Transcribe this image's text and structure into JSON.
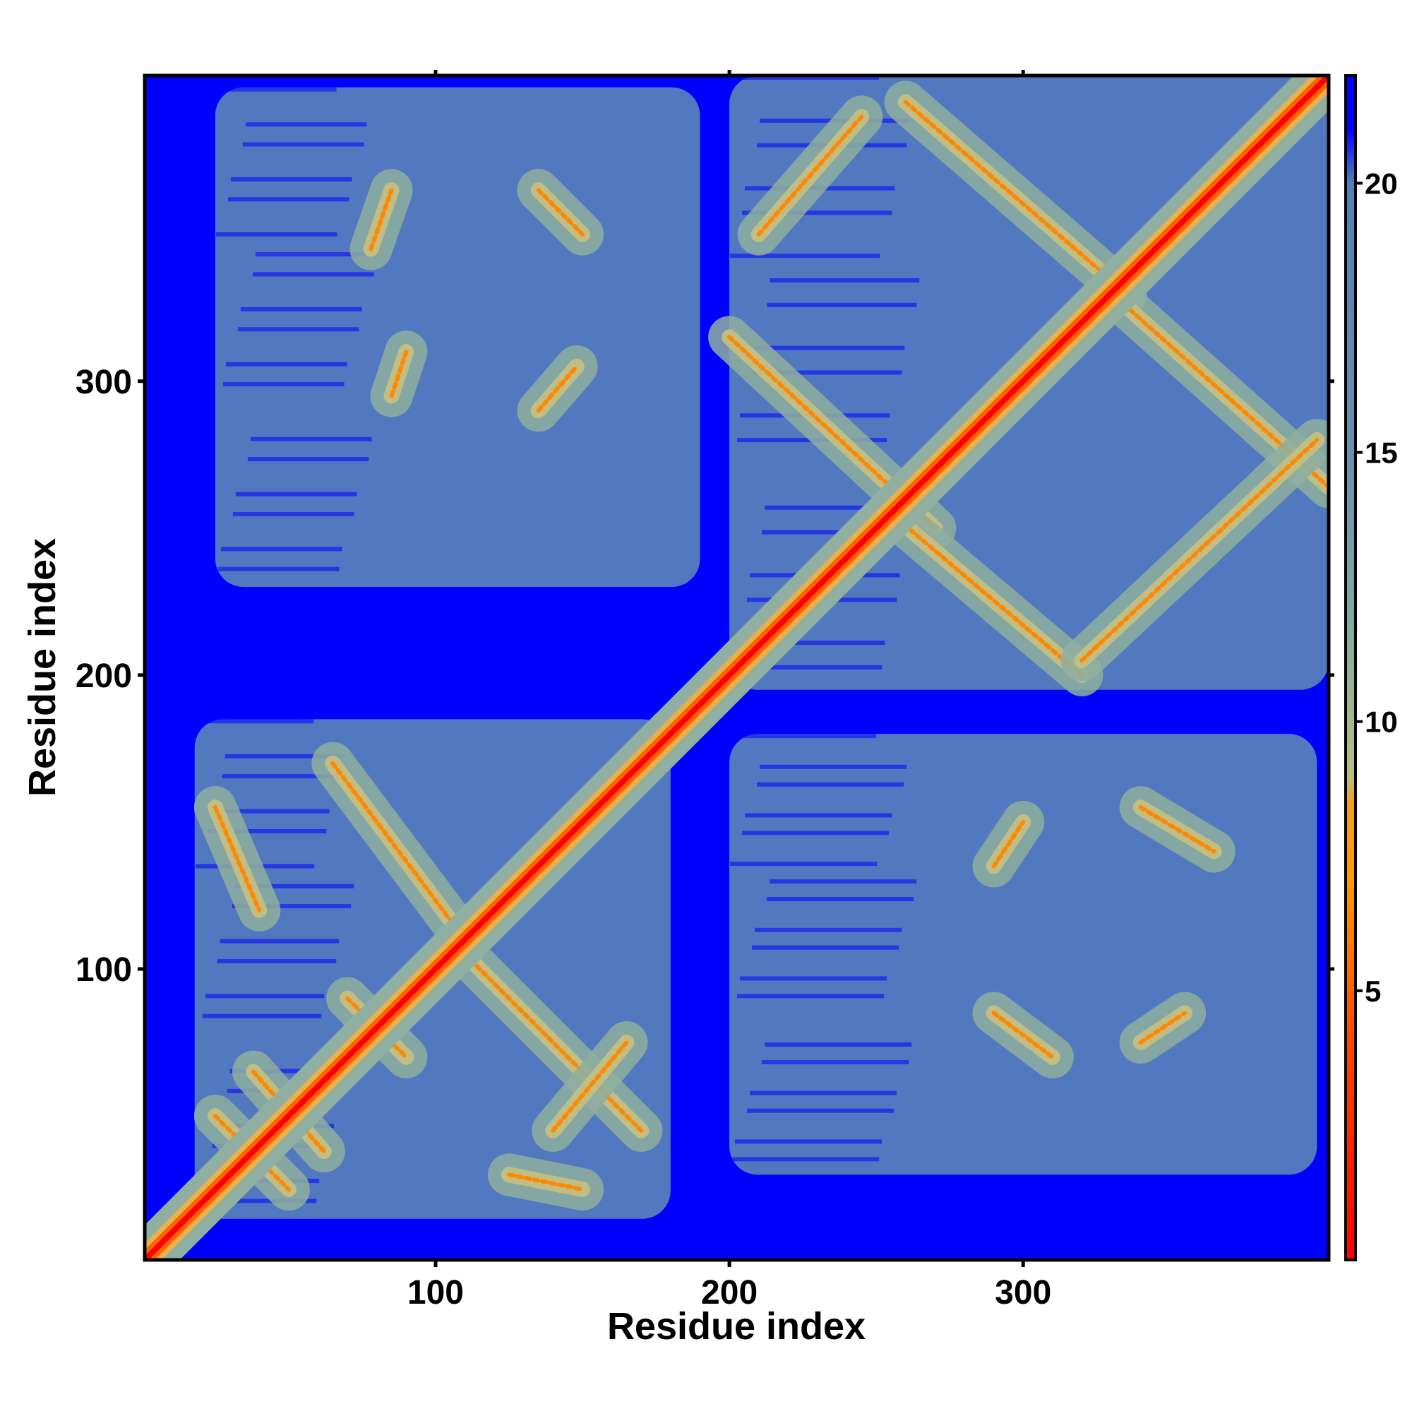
{
  "chart_data": {
    "type": "heatmap",
    "xlabel": "Residue index",
    "ylabel": "Residue index",
    "xlim": [
      1,
      404
    ],
    "ylim": [
      1,
      404
    ],
    "x_ticks": [
      100,
      200,
      300
    ],
    "y_ticks": [
      100,
      200,
      300
    ],
    "grid": false,
    "colorbar": {
      "ticks": [
        5,
        10,
        15,
        20
      ],
      "range": [
        0,
        22
      ],
      "colors": [
        {
          "stop": 0,
          "color": "#ff0000"
        },
        {
          "stop": 4,
          "color": "#ff4500"
        },
        {
          "stop": 7,
          "color": "#ff9900"
        },
        {
          "stop": 8.5,
          "color": "#f0a020"
        },
        {
          "stop": 9,
          "color": "#b8c080"
        },
        {
          "stop": 12,
          "color": "#80a8a0"
        },
        {
          "stop": 15,
          "color": "#6a90b0"
        },
        {
          "stop": 20,
          "color": "#5080b8"
        },
        {
          "stop": 21,
          "color": "#0000ff"
        }
      ]
    },
    "background_value_color": "#0000ff",
    "diagonal_contacts": [
      {
        "from": 1,
        "to": 404,
        "value": 2
      }
    ],
    "contact_bands": [
      {
        "x0": 25,
        "y0": 50,
        "x1": 50,
        "y1": 25
      },
      {
        "x0": 38,
        "y0": 65,
        "x1": 62,
        "y1": 38
      },
      {
        "x0": 70,
        "y0": 90,
        "x1": 90,
        "y1": 70
      },
      {
        "x0": 110,
        "y0": 105,
        "x1": 170,
        "y1": 45
      },
      {
        "x0": 25,
        "y0": 155,
        "x1": 40,
        "y1": 120
      },
      {
        "x0": 65,
        "y0": 170,
        "x1": 110,
        "y1": 110
      },
      {
        "x0": 125,
        "y0": 30,
        "x1": 150,
        "y1": 25
      },
      {
        "x0": 140,
        "y0": 45,
        "x1": 165,
        "y1": 75
      },
      {
        "x0": 200,
        "y0": 315,
        "x1": 270,
        "y1": 250
      },
      {
        "x0": 210,
        "y0": 350,
        "x1": 245,
        "y1": 390
      },
      {
        "x0": 255,
        "y0": 255,
        "x1": 320,
        "y1": 200
      },
      {
        "x0": 260,
        "y0": 395,
        "x1": 335,
        "y1": 330
      },
      {
        "x0": 330,
        "y0": 330,
        "x1": 404,
        "y1": 264
      },
      {
        "x0": 320,
        "y0": 205,
        "x1": 400,
        "y1": 280
      },
      {
        "x0": 85,
        "y0": 295,
        "x1": 90,
        "y1": 310
      },
      {
        "x0": 78,
        "y0": 345,
        "x1": 85,
        "y1": 365
      },
      {
        "x0": 135,
        "y0": 365,
        "x1": 150,
        "y1": 350
      },
      {
        "x0": 135,
        "y0": 290,
        "x1": 148,
        "y1": 305
      },
      {
        "x0": 290,
        "y0": 135,
        "x1": 300,
        "y1": 150
      },
      {
        "x0": 340,
        "y0": 155,
        "x1": 365,
        "y1": 140
      },
      {
        "x0": 290,
        "y0": 85,
        "x1": 310,
        "y1": 70
      },
      {
        "x0": 340,
        "y0": 75,
        "x1": 355,
        "y1": 85
      }
    ],
    "contact_regions": [
      {
        "x": [
          18,
          180
        ],
        "y": [
          15,
          185
        ]
      },
      {
        "x": [
          200,
          404
        ],
        "y": [
          195,
          404
        ]
      },
      {
        "x": [
          25,
          190
        ],
        "y": [
          230,
          400
        ]
      },
      {
        "x": [
          200,
          400
        ],
        "y": [
          30,
          180
        ]
      }
    ]
  }
}
